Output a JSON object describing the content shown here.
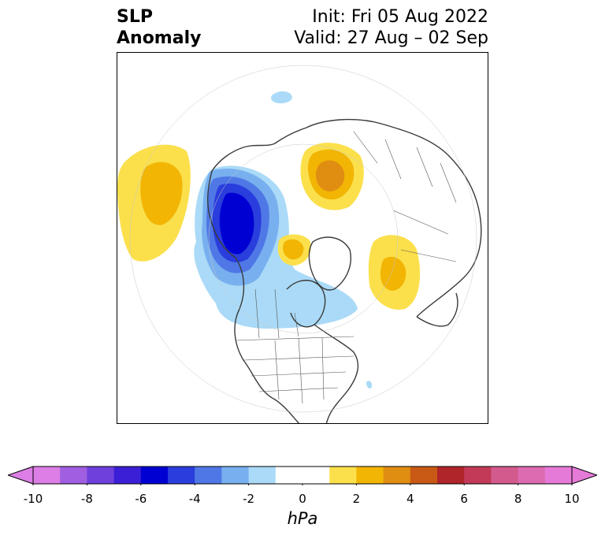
{
  "title": {
    "left_line1": "SLP",
    "left_line2": "Anomaly",
    "right_line1": "Init: Fri 05 Aug 2022",
    "right_line2": "Valid: 27 Aug – 02 Sep"
  },
  "map": {
    "projection": "north-polar-stereographic",
    "region": "North America / Arctic / Eurasia"
  },
  "colorbar": {
    "unit": "hPa",
    "ticks": [
      "-10",
      "-8",
      "-6",
      "-4",
      "-2",
      "0",
      "2",
      "4",
      "6",
      "8",
      "10"
    ],
    "colors": [
      "#dc7ee6",
      "#a05ee0",
      "#7040dc",
      "#3a1fd6",
      "#0000d2",
      "#2a3ddd",
      "#4f78e6",
      "#78afef",
      "#aadaf7",
      "#ffffff",
      "#ffffff",
      "#fbe04c",
      "#f2b504",
      "#e08e12",
      "#c85a16",
      "#b0252a",
      "#c33a58",
      "#d35a8c",
      "#dc6bb2",
      "#e67ad8"
    ],
    "under_color": "#dc7ee6",
    "over_color": "#e67ad8",
    "extend": "both"
  }
}
